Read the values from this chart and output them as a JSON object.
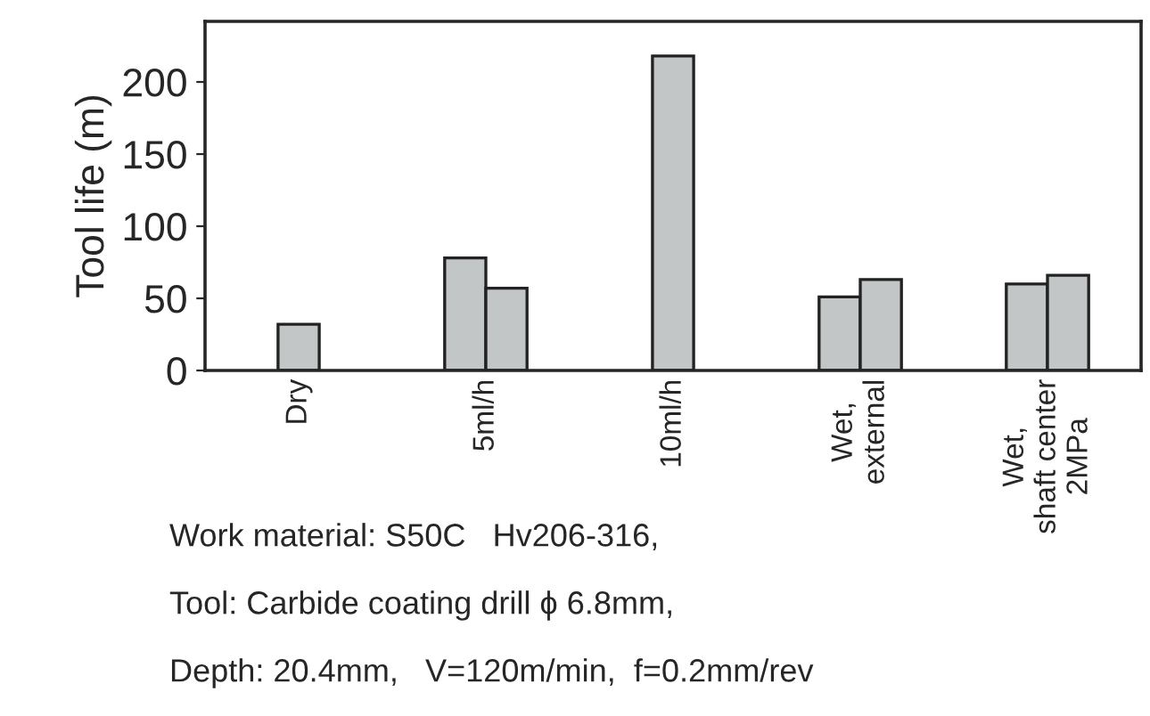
{
  "chart_data": {
    "type": "bar",
    "ylabel": "Tool life (m)",
    "categories": [
      "Dry",
      "5ml/h",
      "10ml/h",
      "Wet,\nexternal",
      "Wet,\nshaft center\n2MPa"
    ],
    "series": [
      {
        "color": "#c2c6c6",
        "values": [
          32,
          78,
          218,
          51,
          60
        ]
      },
      {
        "color": "#c2c6c6",
        "values": [
          null,
          57,
          null,
          63,
          66
        ]
      }
    ],
    "ylim": [
      0,
      242
    ],
    "yticks": [
      0,
      50,
      100,
      150,
      200
    ],
    "grid": false,
    "legend": false,
    "annotations": [
      "Work material: S50C   Hv206-316,",
      "Tool: Carbide coating drill ϕ 6.8mm,",
      "Depth: 20.4mm,   V=120m/min,  f=0.2mm/rev"
    ]
  }
}
